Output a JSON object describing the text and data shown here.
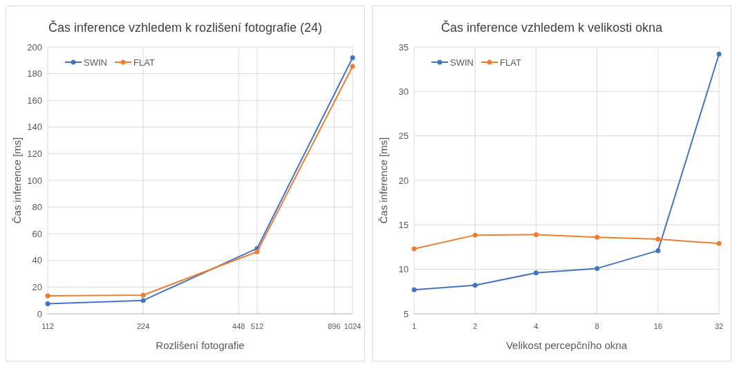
{
  "chart_data": [
    {
      "type": "line",
      "title": "Čas inference vzhledem k rozlišení fotografie (24)",
      "xlabel": "Rozlišení fotografie",
      "ylabel": "Čas inference [ms]",
      "x": [
        112,
        224,
        512,
        1024
      ],
      "series": [
        {
          "name": "SWIN",
          "color": "#4472c4",
          "values": [
            7.5,
            10,
            49,
            192
          ]
        },
        {
          "name": "FLAT",
          "color": "#ed7d31",
          "values": [
            13.5,
            14,
            46.5,
            185.5
          ]
        }
      ],
      "xlim": [
        112,
        1024
      ],
      "xticks": [
        112,
        224,
        448,
        512,
        896,
        1024
      ],
      "ylim": [
        0,
        200
      ],
      "yticks": [
        0,
        20,
        40,
        60,
        80,
        100,
        120,
        140,
        160,
        180,
        200
      ],
      "log": "x",
      "grid": true,
      "legend": "top left",
      "marker": "circle"
    },
    {
      "type": "line",
      "title": "Čas inference vzhledem k velikosti okna",
      "xlabel": "Velikost percepčního okna",
      "ylabel": "Čas inference [ms]",
      "x": [
        1,
        2,
        4,
        8,
        16,
        32
      ],
      "series": [
        {
          "name": "SWIN",
          "color": "#4472c4",
          "values": [
            7.7,
            8.2,
            9.6,
            10.1,
            12.1,
            34.2
          ]
        },
        {
          "name": "FLAT",
          "color": "#ed7d31",
          "values": [
            12.3,
            13.85,
            13.9,
            13.6,
            13.4,
            12.9
          ]
        }
      ],
      "xlim": [
        1,
        32
      ],
      "xticks": [
        1,
        2,
        4,
        8,
        16,
        32
      ],
      "ylim": [
        5,
        35
      ],
      "yticks": [
        5,
        10,
        15,
        20,
        25,
        30,
        35
      ],
      "log": "x",
      "grid": true,
      "legend": "top left",
      "marker": "circle"
    }
  ]
}
